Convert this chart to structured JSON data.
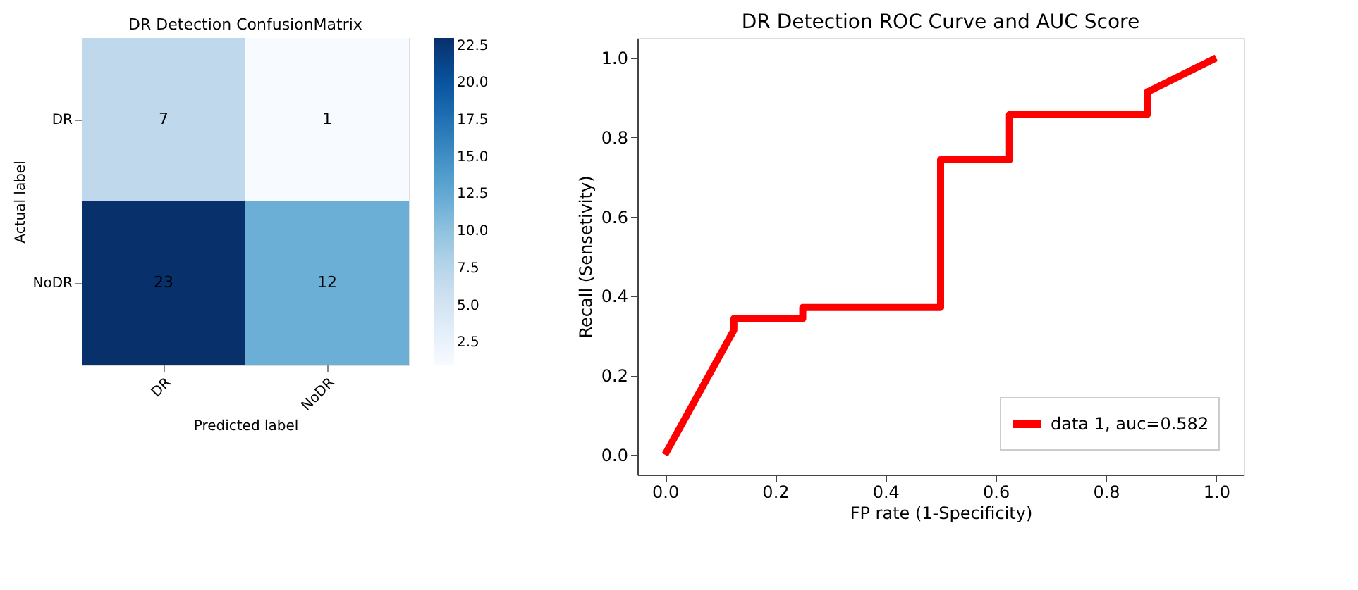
{
  "chart_data": [
    {
      "type": "heatmap",
      "title": "DR Detection ConfusionMatrix",
      "xlabel": "Predicted label",
      "ylabel": "Actual label",
      "categories": [
        "DR",
        "NoDR"
      ],
      "y_categories": [
        "DR",
        "NoDR"
      ],
      "cells": [
        [
          7,
          1
        ],
        [
          23,
          12
        ]
      ],
      "clim": [
        1,
        23
      ],
      "cticks": [
        2.5,
        {
          "value": 5,
          "label": "5.0"
        },
        7.5,
        {
          "value": 10,
          "label": "10.0"
        },
        12.5,
        {
          "value": 15,
          "label": "15.0"
        },
        17.5,
        {
          "value": 20,
          "label": "20.0"
        },
        22.5
      ],
      "data_labels": true
    },
    {
      "type": "line",
      "title": "DR Detection ROC Curve and AUC Score",
      "xlabel": "FP rate (1-Specificity)",
      "ylabel": "Recall (Sensetivity)",
      "x": [
        0,
        0.125,
        0.125,
        0.25,
        0.25,
        0.5,
        0.5,
        0.625,
        0.625,
        0.875,
        0.875,
        1
      ],
      "series": [
        {
          "name": "data 1, auc=0.582",
          "color": "#ff0000",
          "values": [
            0,
            0.314,
            0.343,
            0.343,
            0.371,
            0.371,
            0.743,
            0.743,
            0.857,
            0.857,
            0.914,
            1
          ]
        }
      ],
      "xlim": [
        -0.05,
        1.05
      ],
      "ylim": [
        -0.05,
        1.05
      ],
      "xticks": [
        {
          "value": 0,
          "label": "0.0"
        },
        0.2,
        0.4,
        0.6,
        0.8,
        {
          "value": 1,
          "label": "1.0"
        }
      ],
      "yticks": [
        {
          "value": 0,
          "label": "0.0"
        },
        0.2,
        0.4,
        0.6,
        0.8,
        {
          "value": 1,
          "label": "1.0"
        }
      ],
      "grid": false,
      "legend": "bottom right",
      "marker": "none",
      "line_style": "solid"
    }
  ]
}
